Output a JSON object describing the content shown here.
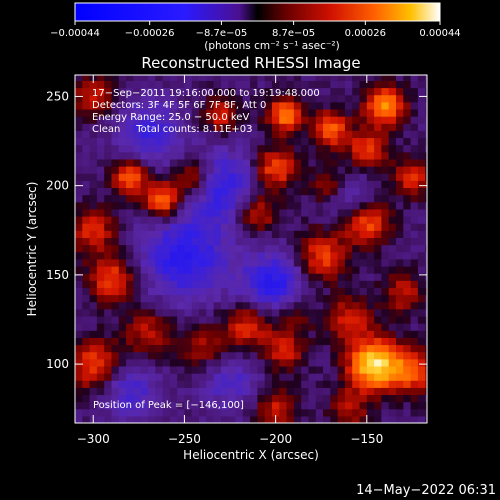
{
  "chart_data": {
    "type": "heatmap",
    "title": "Reconstructed RHESSI Image",
    "xlabel": "Heliocentric X (arcsec)",
    "ylabel": "Heliocentric Y (arcsec)",
    "xlim": [
      -310,
      -117
    ],
    "ylim": [
      67,
      262
    ],
    "x_ticks": [
      {
        "value": -300,
        "label": "−300"
      },
      {
        "value": -250,
        "label": "−250"
      },
      {
        "value": -200,
        "label": "−200"
      },
      {
        "value": -150,
        "label": "−150"
      }
    ],
    "y_ticks": [
      {
        "value": 100,
        "label": "100"
      },
      {
        "value": 150,
        "label": "150"
      },
      {
        "value": 200,
        "label": "200"
      },
      {
        "value": 250,
        "label": "250"
      }
    ],
    "colorbar": {
      "range": [
        -0.00044,
        0.00044
      ],
      "ticks": [
        {
          "value": -0.00044,
          "label": "−0.00044"
        },
        {
          "value": -0.00026,
          "label": "−0.00026"
        },
        {
          "value": -8.7e-05,
          "label": "−8.7e−05"
        },
        {
          "value": 8.7e-05,
          "label": "8.7e−05"
        },
        {
          "value": 0.00026,
          "label": "0.00026"
        },
        {
          "value": 0.00044,
          "label": "0.00044"
        }
      ],
      "units_label": "(photons cm⁻² s⁻¹ asec⁻²)"
    },
    "annotations": [
      "17−Sep−2011 19:16:00.000 to 19:19:48.000",
      "Detectors: 3F 4F 5F 6F 7F 8F, Att 0",
      "Energy Range: 25.0 − 50.0 keV",
      "Clean     Total counts: 8.11E+03"
    ],
    "peak_label": "Position of Peak = [−146,100]",
    "peak": [
      -146,
      100
    ],
    "blobs": [
      {
        "x": -146,
        "y": 100,
        "v": 1.0,
        "s": 10
      },
      {
        "x": -125,
        "y": 96,
        "v": 0.55,
        "s": 9
      },
      {
        "x": -160,
        "y": 125,
        "v": 0.45,
        "s": 9
      },
      {
        "x": -215,
        "y": 122,
        "v": 0.5,
        "s": 9
      },
      {
        "x": -195,
        "y": 108,
        "v": 0.45,
        "s": 8
      },
      {
        "x": -240,
        "y": 110,
        "v": 0.35,
        "s": 9
      },
      {
        "x": -270,
        "y": 118,
        "v": 0.4,
        "s": 9
      },
      {
        "x": -300,
        "y": 100,
        "v": 0.55,
        "s": 10
      },
      {
        "x": -290,
        "y": 148,
        "v": 0.55,
        "s": 9
      },
      {
        "x": -300,
        "y": 175,
        "v": 0.45,
        "s": 9
      },
      {
        "x": -280,
        "y": 205,
        "v": 0.65,
        "s": 7
      },
      {
        "x": -262,
        "y": 192,
        "v": 0.7,
        "s": 7
      },
      {
        "x": -245,
        "y": 205,
        "v": 0.5,
        "s": 8
      },
      {
        "x": -300,
        "y": 250,
        "v": 0.45,
        "s": 8
      },
      {
        "x": -200,
        "y": 210,
        "v": 0.6,
        "s": 8
      },
      {
        "x": -195,
        "y": 240,
        "v": 0.7,
        "s": 7
      },
      {
        "x": -210,
        "y": 185,
        "v": 0.45,
        "s": 8
      },
      {
        "x": -175,
        "y": 160,
        "v": 0.55,
        "s": 10
      },
      {
        "x": -170,
        "y": 200,
        "v": 0.4,
        "s": 8
      },
      {
        "x": -150,
        "y": 180,
        "v": 0.6,
        "s": 9
      },
      {
        "x": -140,
        "y": 245,
        "v": 0.75,
        "s": 8
      },
      {
        "x": -150,
        "y": 220,
        "v": 0.5,
        "s": 8
      },
      {
        "x": -170,
        "y": 232,
        "v": 0.65,
        "s": 7
      },
      {
        "x": -230,
        "y": 240,
        "v": 0.45,
        "s": 7
      },
      {
        "x": -125,
        "y": 205,
        "v": 0.45,
        "s": 8
      },
      {
        "x": -190,
        "y": 130,
        "v": 0.35,
        "s": 8
      },
      {
        "x": -130,
        "y": 140,
        "v": 0.4,
        "s": 8
      },
      {
        "x": -160,
        "y": 75,
        "v": 0.35,
        "s": 8
      },
      {
        "x": -200,
        "y": 75,
        "v": 0.4,
        "s": 8
      },
      {
        "x": -230,
        "y": 200,
        "v": -0.5,
        "s": 14
      },
      {
        "x": -250,
        "y": 160,
        "v": -0.55,
        "s": 16
      },
      {
        "x": -200,
        "y": 145,
        "v": -0.55,
        "s": 13
      },
      {
        "x": -270,
        "y": 230,
        "v": -0.4,
        "s": 13
      },
      {
        "x": -160,
        "y": 195,
        "v": -0.35,
        "s": 10
      },
      {
        "x": -280,
        "y": 85,
        "v": -0.35,
        "s": 11
      },
      {
        "x": -225,
        "y": 90,
        "v": -0.3,
        "s": 11
      }
    ]
  },
  "footer": {
    "timestamp": "14−May−2022 06:31"
  }
}
